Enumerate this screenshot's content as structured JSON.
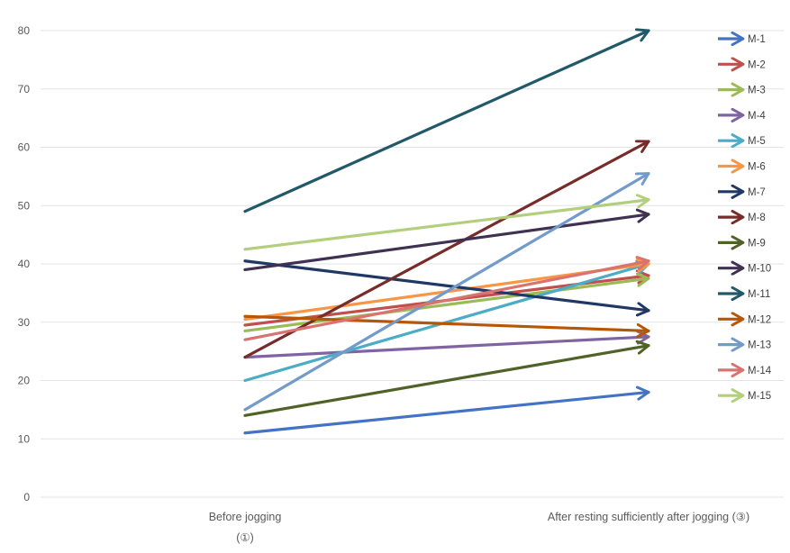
{
  "chart_data": {
    "type": "line",
    "title": "",
    "xlabel": "",
    "ylabel": "",
    "categories": [
      {
        "line1": "Before jogging",
        "line2": "(①)"
      },
      {
        "line1": "After resting sufficiently after jogging (③)",
        "line2": ""
      }
    ],
    "ylim": [
      0,
      80
    ],
    "yticks": [
      0,
      10,
      20,
      30,
      40,
      50,
      60,
      70,
      80
    ],
    "grid": true,
    "legend": "right",
    "series": [
      {
        "name": "M-1",
        "color": "#4472c4",
        "values": [
          11,
          18
        ]
      },
      {
        "name": "M-2",
        "color": "#c0504d",
        "values": [
          29.5,
          38
        ]
      },
      {
        "name": "M-3",
        "color": "#9bbb59",
        "values": [
          28.5,
          37.5
        ]
      },
      {
        "name": "M-4",
        "color": "#8064a2",
        "values": [
          24,
          27.5
        ]
      },
      {
        "name": "M-5",
        "color": "#4bacc6",
        "values": [
          20,
          40
        ]
      },
      {
        "name": "M-6",
        "color": "#f79646",
        "values": [
          30.5,
          40
        ]
      },
      {
        "name": "M-7",
        "color": "#1f3864",
        "values": [
          40.5,
          32
        ]
      },
      {
        "name": "M-8",
        "color": "#772c2a",
        "values": [
          24,
          61
        ]
      },
      {
        "name": "M-9",
        "color": "#4f6228",
        "values": [
          14,
          26
        ]
      },
      {
        "name": "M-10",
        "color": "#403152",
        "values": [
          39,
          48.5
        ]
      },
      {
        "name": "M-11",
        "color": "#215968",
        "values": [
          49,
          80
        ]
      },
      {
        "name": "M-12",
        "color": "#b65708",
        "values": [
          31,
          28.5
        ]
      },
      {
        "name": "M-13",
        "color": "#729aca",
        "values": [
          15,
          55.5
        ]
      },
      {
        "name": "M-14",
        "color": "#d9736f",
        "values": [
          27,
          40.5
        ]
      },
      {
        "name": "M-15",
        "color": "#b3cf7e",
        "values": [
          42.5,
          51
        ]
      }
    ]
  }
}
